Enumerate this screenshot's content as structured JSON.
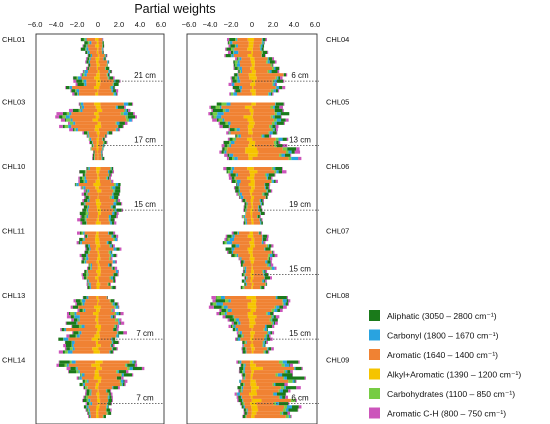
{
  "chart_data": {
    "type": "bar",
    "orientation": "horizontal",
    "title": "Partial weights",
    "x_ticks": [
      "−6.0",
      "−4.0",
      "−2.0",
      "0",
      "2.0",
      "4.0",
      "6.0"
    ],
    "xlim": [
      -6,
      6
    ],
    "legend": [
      {
        "label": "Aliphatic (3050 – 2800 cm⁻¹)",
        "color": "#1a7a1a"
      },
      {
        "label": "Carbonyl (1800 – 1670 cm⁻¹)",
        "color": "#29a3e0"
      },
      {
        "label": "Aromatic (1640 – 1400 cm⁻¹)",
        "color": "#f08233"
      },
      {
        "label": "Alkyl+Aromatic (1390 – 1200 cm⁻¹)",
        "color": "#f5c400"
      },
      {
        "label": "Carbohydrates (1100 – 850 cm⁻¹)",
        "color": "#77cc44"
      },
      {
        "label": "Aromatic C-H (800 – 750 cm⁻¹)",
        "color": "#cc55bb"
      }
    ],
    "panels": [
      {
        "name": "left",
        "cores": [
          {
            "label": "CHL01",
            "depth": "21 cm"
          },
          {
            "label": "CHL03",
            "depth": "17 cm"
          },
          {
            "label": "CHL10",
            "depth": "15 cm"
          },
          {
            "label": "CHL11",
            "depth": ""
          },
          {
            "label": "CHL13",
            "depth": "7 cm"
          },
          {
            "label": "CHL14",
            "depth": "7 cm"
          }
        ]
      },
      {
        "name": "right",
        "cores": [
          {
            "label": "CHL04",
            "depth": "6 cm"
          },
          {
            "label": "CHL05",
            "depth": "13 cm"
          },
          {
            "label": "CHL06",
            "depth": "19 cm"
          },
          {
            "label": "CHL07",
            "depth": "15 cm"
          },
          {
            "label": "CHL08",
            "depth": "15 cm"
          },
          {
            "label": "CHL09",
            "depth": "6 cm"
          }
        ]
      }
    ],
    "profile_keypoints_note": "",
    "left_profiles": [
      [
        [
          [
            0,
            0.5
          ],
          [
            0.3,
            0.8
          ],
          [
            0.6,
            1.4
          ],
          [
            0.8,
            1.8
          ],
          [
            1,
            2.0
          ]
        ],
        [
          [
            0,
            -1.6
          ],
          [
            0.3,
            -1.2
          ],
          [
            0.6,
            -1.3
          ],
          [
            0.8,
            -2.5
          ],
          [
            1,
            -3.2
          ]
        ]
      ],
      [
        [
          [
            0,
            2.8
          ],
          [
            0.35,
            3.4
          ],
          [
            0.55,
            1.2
          ],
          [
            0.75,
            0.6
          ],
          [
            1,
            0.6
          ]
        ],
        [
          [
            0,
            -1.5
          ],
          [
            0.3,
            -4.5
          ],
          [
            0.55,
            -1.2
          ],
          [
            0.75,
            -0.6
          ],
          [
            1,
            -0.5
          ]
        ]
      ],
      [
        [
          [
            0,
            1.2
          ],
          [
            0.3,
            1.8
          ],
          [
            0.6,
            2.2
          ],
          [
            0.8,
            2.0
          ],
          [
            1,
            1.8
          ]
        ],
        [
          [
            0,
            -1.5
          ],
          [
            0.3,
            -2.0
          ],
          [
            0.6,
            -1.2
          ],
          [
            0.8,
            -1.8
          ],
          [
            1,
            -2.0
          ]
        ]
      ],
      [
        [
          [
            0,
            1.5
          ],
          [
            0.3,
            1.8
          ],
          [
            0.6,
            1.4
          ],
          [
            0.8,
            1.8
          ],
          [
            1,
            1.4
          ]
        ],
        [
          [
            0,
            -1.8
          ],
          [
            0.3,
            -1.6
          ],
          [
            0.6,
            -1.2
          ],
          [
            0.8,
            -1.5
          ],
          [
            1,
            -1.2
          ]
        ]
      ],
      [
        [
          [
            0,
            1.2
          ],
          [
            0.3,
            2.2
          ],
          [
            0.6,
            2.5
          ],
          [
            0.8,
            1.6
          ],
          [
            1,
            1.8
          ]
        ],
        [
          [
            0,
            -1.8
          ],
          [
            0.3,
            -2.4
          ],
          [
            0.6,
            -3.2
          ],
          [
            0.8,
            -3.5
          ],
          [
            1,
            -3.0
          ]
        ]
      ],
      [
        [
          [
            0,
            4.5
          ],
          [
            0.25,
            3.2
          ],
          [
            0.55,
            1.5
          ],
          [
            0.8,
            1.2
          ],
          [
            1,
            1.0
          ]
        ],
        [
          [
            0,
            -4.5
          ],
          [
            0.25,
            -2.0
          ],
          [
            0.55,
            -1.5
          ],
          [
            0.8,
            -1.2
          ],
          [
            1,
            -1.0
          ]
        ]
      ]
    ],
    "right_profiles": [
      [
        [
          [
            0,
            1.2
          ],
          [
            0.3,
            1.5
          ],
          [
            0.6,
            2.8
          ],
          [
            0.8,
            3.0
          ],
          [
            1,
            2.0
          ]
        ],
        [
          [
            0,
            -2.0
          ],
          [
            0.3,
            -2.2
          ],
          [
            0.6,
            -1.5
          ],
          [
            0.8,
            -1.8
          ],
          [
            1,
            -2.2
          ]
        ]
      ],
      [
        [
          [
            0,
            3.5
          ],
          [
            0.3,
            2.8
          ],
          [
            0.55,
            2.0
          ],
          [
            0.75,
            4.0
          ],
          [
            1,
            4.2
          ]
        ],
        [
          [
            0,
            -3.8
          ],
          [
            0.3,
            -3.2
          ],
          [
            0.55,
            -2.0
          ],
          [
            0.75,
            -2.5
          ],
          [
            1,
            -2.8
          ]
        ]
      ],
      [
        [
          [
            0,
            3.2
          ],
          [
            0.3,
            1.8
          ],
          [
            0.6,
            1.2
          ],
          [
            0.8,
            1.0
          ],
          [
            1,
            1.0
          ]
        ],
        [
          [
            0,
            -3.0
          ],
          [
            0.3,
            -1.5
          ],
          [
            0.6,
            -1.0
          ],
          [
            0.8,
            -0.8
          ],
          [
            1,
            -0.8
          ]
        ]
      ],
      [
        [
          [
            0,
            1.2
          ],
          [
            0.3,
            1.8
          ],
          [
            0.6,
            2.2
          ],
          [
            0.8,
            1.6
          ],
          [
            1,
            1.5
          ]
        ],
        [
          [
            0,
            -2.5
          ],
          [
            0.3,
            -2.2
          ],
          [
            0.6,
            -1.0
          ],
          [
            0.8,
            -0.8
          ],
          [
            1,
            -1.0
          ]
        ]
      ],
      [
        [
          [
            0,
            3.5
          ],
          [
            0.3,
            2.4
          ],
          [
            0.6,
            2.0
          ],
          [
            0.8,
            1.5
          ],
          [
            1,
            1.8
          ]
        ],
        [
          [
            0,
            -4.0
          ],
          [
            0.3,
            -3.0
          ],
          [
            0.6,
            -2.0
          ],
          [
            0.8,
            -1.2
          ],
          [
            1,
            -1.0
          ]
        ]
      ],
      [
        [
          [
            0,
            4.5
          ],
          [
            0.3,
            4.8
          ],
          [
            0.6,
            3.5
          ],
          [
            0.8,
            4.2
          ],
          [
            1,
            4.5
          ]
        ],
        [
          [
            0,
            -1.5
          ],
          [
            0.3,
            -1.0
          ],
          [
            0.6,
            -1.5
          ],
          [
            0.8,
            -1.0
          ],
          [
            1,
            -0.8
          ]
        ]
      ]
    ]
  }
}
